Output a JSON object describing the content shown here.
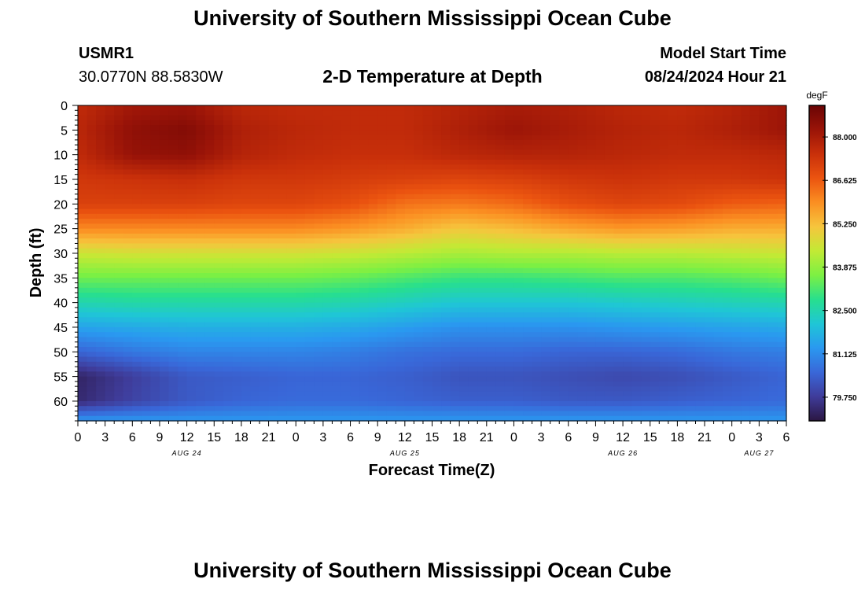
{
  "header": {
    "title": "University of Southern Mississippi Ocean Cube",
    "station_id": "USMR1",
    "location": "30.0770N  88.5830W",
    "model_start_label": "Model Start Time",
    "model_start_value": "08/24/2024 Hour 21"
  },
  "footer": {
    "title": "University of Southern Mississippi Ocean Cube"
  },
  "chart_data": {
    "type": "heatmap",
    "title": "2-D Temperature at Depth",
    "xlabel": "Forecast Time(Z)",
    "ylabel": "Depth (ft)",
    "x_tick_labels": [
      "0",
      "3",
      "6",
      "9",
      "12",
      "15",
      "18",
      "21",
      "0",
      "3",
      "6",
      "9",
      "12",
      "15",
      "18",
      "21",
      "0",
      "3",
      "6",
      "9",
      "12",
      "15",
      "18",
      "21",
      "0",
      "3",
      "6"
    ],
    "x_range_hours": [
      0,
      78
    ],
    "date_labels": [
      {
        "label": "AUG 24",
        "hour": 12
      },
      {
        "label": "AUG 25",
        "hour": 36
      },
      {
        "label": "AUG 26",
        "hour": 60
      },
      {
        "label": "AUG 27",
        "hour": 75
      }
    ],
    "y_ticks": [
      0,
      5,
      10,
      15,
      20,
      25,
      30,
      35,
      40,
      45,
      50,
      55,
      60
    ],
    "y_range": [
      0,
      64
    ],
    "y_inverted": true,
    "colorbar": {
      "unit": "degF",
      "ticks": [
        "88.000",
        "86.625",
        "85.250",
        "83.875",
        "82.500",
        "81.125",
        "79.750"
      ],
      "tick_values": [
        88.0,
        86.625,
        85.25,
        83.875,
        82.5,
        81.125,
        79.75
      ],
      "range": [
        79.0,
        89.0
      ],
      "colors": [
        "#2b1642",
        "#3f3c9a",
        "#3967d8",
        "#2a98f0",
        "#1fc6d6",
        "#27df8e",
        "#7cf043",
        "#c2ea35",
        "#f6c53d",
        "#fb8f22",
        "#eb5410",
        "#c9300a",
        "#9a1408",
        "#6a0404"
      ]
    },
    "temperature_grid": {
      "hours": [
        0,
        6,
        12,
        18,
        24,
        30,
        36,
        42,
        48,
        54,
        60,
        66,
        72,
        78
      ],
      "depths": [
        0,
        5,
        10,
        15,
        20,
        25,
        30,
        35,
        40,
        45,
        50,
        55,
        60,
        64
      ],
      "values": [
        [
          87.6,
          88.1,
          88.2,
          87.7,
          87.6,
          87.6,
          87.6,
          87.8,
          88.0,
          87.9,
          87.7,
          87.6,
          87.8,
          88.2
        ],
        [
          87.7,
          88.4,
          88.6,
          87.9,
          87.7,
          87.6,
          87.6,
          87.9,
          88.2,
          88.0,
          87.8,
          87.7,
          87.9,
          88.2
        ],
        [
          87.6,
          88.3,
          88.4,
          87.8,
          87.6,
          87.5,
          87.5,
          87.7,
          87.8,
          87.8,
          87.7,
          87.6,
          87.6,
          87.7
        ],
        [
          87.3,
          87.4,
          87.5,
          87.3,
          87.3,
          87.2,
          87.1,
          87.0,
          87.1,
          87.3,
          87.4,
          87.3,
          87.3,
          87.4
        ],
        [
          87.1,
          87.1,
          87.1,
          87.0,
          87.0,
          86.8,
          86.3,
          86.2,
          86.4,
          86.8,
          87.0,
          86.9,
          86.6,
          86.5
        ],
        [
          86.0,
          86.0,
          86.0,
          86.0,
          86.0,
          85.8,
          85.5,
          85.1,
          85.3,
          85.6,
          85.8,
          85.7,
          85.5,
          85.5
        ],
        [
          84.5,
          84.6,
          84.6,
          84.6,
          84.6,
          84.5,
          84.3,
          84.1,
          84.2,
          84.2,
          84.3,
          84.3,
          84.4,
          84.5
        ],
        [
          83.5,
          83.5,
          83.5,
          83.5,
          83.5,
          83.4,
          83.2,
          83.0,
          83.0,
          83.1,
          83.2,
          83.2,
          83.3,
          83.5
        ],
        [
          82.5,
          82.6,
          82.6,
          82.6,
          82.6,
          82.5,
          82.3,
          82.1,
          82.1,
          82.1,
          82.2,
          82.3,
          82.4,
          82.5
        ],
        [
          81.5,
          81.6,
          81.7,
          81.7,
          81.7,
          81.6,
          81.4,
          81.2,
          81.2,
          81.2,
          81.3,
          81.4,
          81.5,
          81.6
        ],
        [
          80.5,
          80.8,
          81.0,
          81.0,
          81.0,
          80.9,
          80.7,
          80.6,
          80.6,
          80.5,
          80.5,
          80.6,
          80.8,
          80.9
        ],
        [
          79.3,
          79.8,
          80.3,
          80.4,
          80.5,
          80.5,
          80.4,
          80.2,
          80.2,
          80.1,
          80.0,
          80.1,
          80.3,
          80.5
        ],
        [
          79.4,
          79.9,
          80.3,
          80.5,
          80.6,
          80.6,
          80.5,
          80.4,
          80.4,
          80.3,
          80.3,
          80.4,
          80.5,
          80.6
        ],
        [
          81.3,
          81.3,
          81.3,
          81.3,
          81.3,
          81.3,
          81.3,
          81.3,
          81.3,
          81.3,
          81.3,
          81.3,
          81.3,
          81.3
        ]
      ]
    }
  }
}
